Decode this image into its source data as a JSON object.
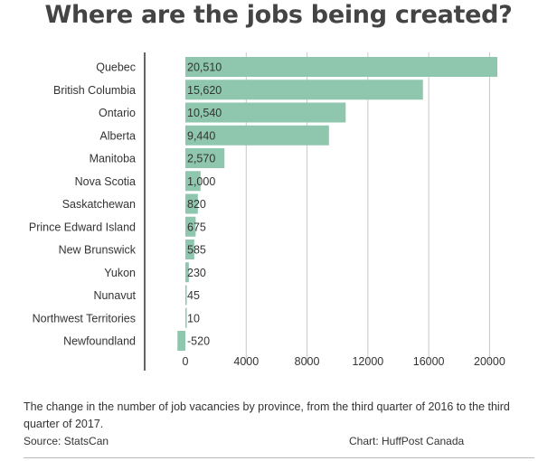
{
  "title": "Where are the jobs being created?",
  "caption": "The change in the number of job vacancies by province, from the third quarter of 2016 to the third quarter of 2017.",
  "source": "Source: StatsCan",
  "credit": "Chart: HuffPost Canada",
  "colors": {
    "bar": "#8fc6ae",
    "grid": "#c8c8c8",
    "axis": "#333333",
    "text": "#333333"
  },
  "chart_data": {
    "type": "bar",
    "orientation": "horizontal",
    "categories": [
      "Quebec",
      "British Columbia",
      "Ontario",
      "Alberta",
      "Manitoba",
      "Nova Scotia",
      "Saskatchewan",
      "Prince Edward Island",
      "New Brunswick",
      "Yukon",
      "Nunavut",
      "Northwest Territories",
      "Newfoundland"
    ],
    "values": [
      20510,
      15620,
      10540,
      9440,
      2570,
      1000,
      820,
      675,
      585,
      230,
      45,
      10,
      -520
    ],
    "value_labels": [
      "20,510",
      "15,620",
      "10,540",
      "9,440",
      "2,570",
      "1,000",
      "820",
      "675",
      "585",
      "230",
      "45",
      "10",
      "-520"
    ],
    "xticks": [
      0,
      4000,
      8000,
      12000,
      16000,
      20000
    ],
    "xtick_labels": [
      "0",
      "4000",
      "8000",
      "12000",
      "16000",
      "20000"
    ],
    "xlim": [
      -2000,
      21000
    ],
    "grid": true
  }
}
